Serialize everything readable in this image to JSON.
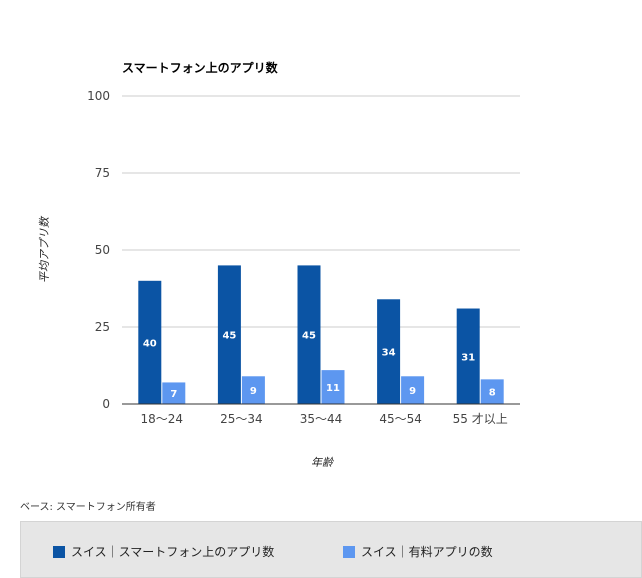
{
  "chart_data": {
    "type": "bar",
    "title": "スマートフォン上のアプリ数",
    "xlabel": "年齢",
    "ylabel": "平均アプリ数",
    "categories": [
      "18～24",
      "25～34",
      "35～44",
      "45～54",
      "55 才以上"
    ],
    "series": [
      {
        "name": "スイス｜スマートフォン上のアプリ数",
        "values": [
          40,
          45,
          45,
          34,
          31
        ],
        "color": "#0b54a4"
      },
      {
        "name": "スイス｜有料アプリの数",
        "values": [
          7,
          9,
          11,
          9,
          8
        ],
        "color": "#5d97f0"
      }
    ],
    "ylim": [
      0,
      100
    ],
    "yticks": [
      0,
      25,
      50,
      75,
      100
    ],
    "grid": true,
    "legend_position": "bottom"
  },
  "source_note": "ベース: スマートフォン所有者"
}
